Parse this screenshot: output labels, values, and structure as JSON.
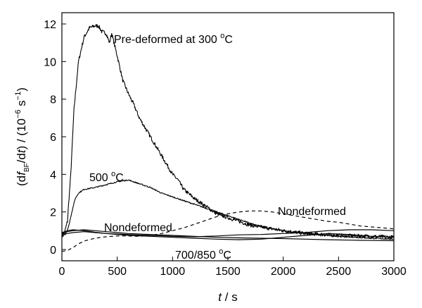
{
  "chart_data": {
    "type": "line",
    "xlabel": {
      "main": "t",
      "unit": " / s"
    },
    "ylabel": {
      "open": "(d",
      "f": "f",
      "sub": "BF",
      "mid1": "/d",
      "t": "t",
      "mid2": ") / (10",
      "sup1": "−6",
      "mid3": " s",
      "sup2": "−1",
      "close": ")"
    },
    "xlim": [
      0,
      3000
    ],
    "ylim": [
      -0.6,
      12.6
    ],
    "x_ticks": [
      0,
      500,
      1000,
      1500,
      2000,
      2500,
      3000
    ],
    "y_ticks": [
      0,
      2,
      4,
      6,
      8,
      10,
      12
    ],
    "grid": false,
    "annotations": [
      {
        "id": "pre300",
        "text": "Pre-deformed at 300 ",
        "sup": "o",
        "unit": "C"
      },
      {
        "id": "c500",
        "text": "500 ",
        "sup": "o",
        "unit": "C"
      },
      {
        "id": "nondef-right",
        "text": "Nondeformed",
        "sup": "",
        "unit": ""
      },
      {
        "id": "nondef-left",
        "text": "Nondeformed",
        "sup": "",
        "unit": ""
      },
      {
        "id": "c700",
        "text": "700/850 ",
        "sup": "o",
        "unit": "C"
      }
    ],
    "series": [
      {
        "id": "pre300",
        "style": "solid",
        "noise": 0.1,
        "x": [
          0,
          20,
          50,
          80,
          110,
          150,
          200,
          250,
          300,
          330,
          360,
          400,
          430,
          450,
          500,
          550,
          600,
          650,
          700,
          800,
          900,
          1000,
          1050,
          1100,
          1200,
          1300,
          1400,
          1500,
          1600,
          1700,
          1800,
          2000,
          2200,
          2500,
          2800,
          3000
        ],
        "y": [
          0.7,
          0.8,
          1.5,
          4.0,
          7.5,
          10.0,
          11.3,
          11.8,
          11.9,
          11.9,
          11.6,
          11.5,
          11.0,
          11.5,
          10.3,
          9.0,
          8.3,
          7.7,
          7.0,
          6.0,
          5.0,
          4.0,
          3.7,
          3.2,
          2.7,
          2.3,
          1.9,
          1.7,
          1.5,
          1.3,
          1.2,
          1.0,
          0.85,
          0.75,
          0.7,
          0.65
        ]
      },
      {
        "id": "c500",
        "style": "solid",
        "noise": 0.03,
        "x": [
          0,
          30,
          60,
          90,
          120,
          150,
          200,
          300,
          400,
          500,
          600,
          650,
          700,
          800,
          900,
          1000,
          1100,
          1200,
          1300,
          1400,
          1500,
          1600,
          1700,
          1800,
          2000,
          2200,
          2500,
          2800,
          3000
        ],
        "y": [
          0.9,
          0.8,
          1.2,
          2.0,
          2.7,
          3.0,
          3.2,
          3.3,
          3.45,
          3.6,
          3.7,
          3.6,
          3.5,
          3.3,
          3.0,
          2.8,
          2.6,
          2.4,
          2.2,
          2.0,
          1.8,
          1.6,
          1.4,
          1.2,
          1.0,
          0.85,
          0.7,
          0.6,
          0.55
        ]
      },
      {
        "id": "nondeformed",
        "style": "dashed",
        "noise": 0,
        "x": [
          0,
          50,
          100,
          150,
          200,
          300,
          400,
          500,
          600,
          700,
          800,
          900,
          1000,
          1100,
          1200,
          1300,
          1400,
          1500,
          1600,
          1700,
          1800,
          1900,
          2000,
          2100,
          2200,
          2300,
          2400,
          2500,
          2600,
          2700,
          2800,
          2900,
          3000
        ],
        "y": [
          -0.1,
          -0.05,
          0.1,
          0.3,
          0.45,
          0.6,
          0.68,
          0.72,
          0.72,
          0.7,
          0.75,
          0.85,
          1.0,
          1.15,
          1.35,
          1.55,
          1.75,
          1.9,
          2.0,
          2.05,
          2.05,
          2.0,
          1.9,
          1.8,
          1.7,
          1.6,
          1.5,
          1.45,
          1.35,
          1.25,
          1.2,
          1.15,
          1.1
        ]
      },
      {
        "id": "c700",
        "style": "solid",
        "noise": 0,
        "x": [
          0,
          50,
          100,
          200,
          300,
          400,
          500,
          600,
          800,
          1000,
          1200,
          1400,
          1600,
          1800,
          2000,
          2200,
          2400,
          2600,
          2800,
          3000
        ],
        "y": [
          0.85,
          0.95,
          1.0,
          1.05,
          1.0,
          0.95,
          0.9,
          0.85,
          0.8,
          0.75,
          0.7,
          0.65,
          0.62,
          0.6,
          0.58,
          0.55,
          0.52,
          0.5,
          0.48,
          0.47
        ]
      },
      {
        "id": "c850",
        "style": "solid",
        "noise": 0,
        "x": [
          0,
          50,
          100,
          200,
          300,
          400,
          600,
          800,
          1000,
          1200,
          1400,
          1600,
          1800,
          2000,
          2200,
          2400,
          2600,
          2800,
          3000
        ],
        "y": [
          0.8,
          0.85,
          0.9,
          0.95,
          0.9,
          0.85,
          0.8,
          0.75,
          0.7,
          0.68,
          0.72,
          0.78,
          0.8,
          0.85,
          0.9,
          1.0,
          1.05,
          1.05,
          1.0
        ]
      },
      {
        "id": "c700b",
        "style": "solid",
        "noise": 0,
        "x": [
          0,
          50,
          100,
          200,
          300,
          400,
          600,
          800,
          1000,
          1200,
          1400,
          1600,
          1800,
          2000,
          2200,
          2400,
          2600,
          2800,
          3000
        ],
        "y": [
          0.9,
          1.0,
          1.05,
          1.0,
          0.92,
          0.85,
          0.75,
          0.7,
          0.65,
          0.6,
          0.55,
          0.52,
          0.55,
          0.65,
          0.75,
          0.85,
          0.8,
          0.7,
          0.65
        ]
      }
    ]
  }
}
